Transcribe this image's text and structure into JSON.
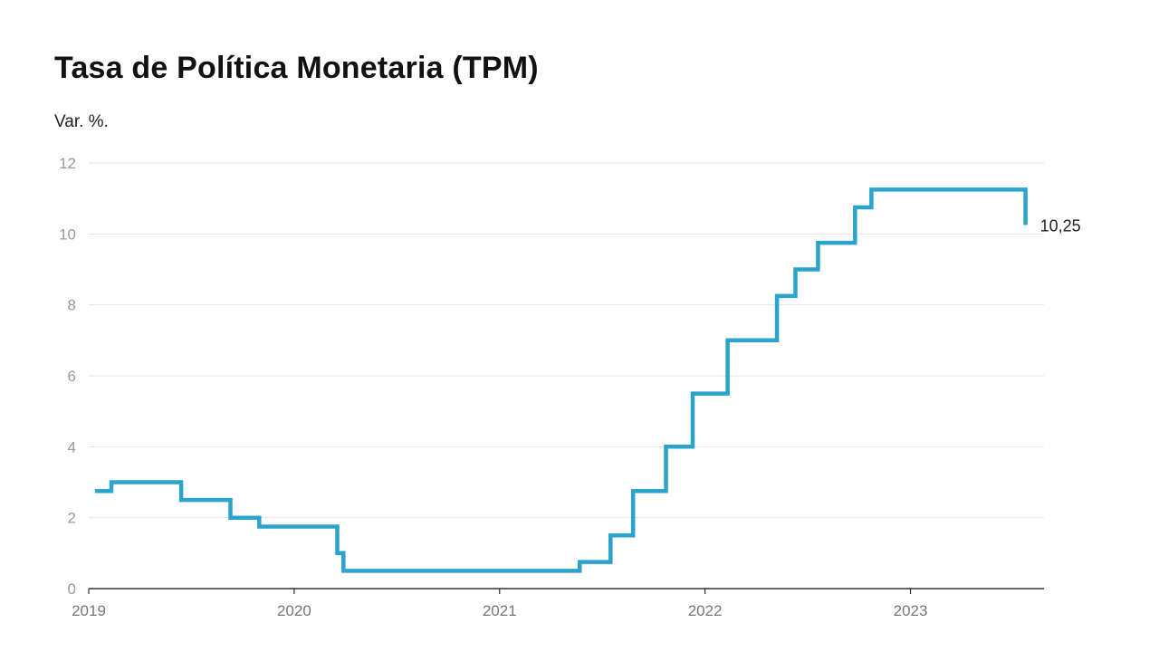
{
  "chart_data": {
    "type": "line",
    "title": "Tasa de Política Monetaria (TPM)",
    "subtitle": "Var. %.",
    "xlabel": "",
    "ylabel": "",
    "step": true,
    "line_color": "#2aa4cc",
    "grid": true,
    "xlim": [
      2019.0,
      2023.65
    ],
    "ylim": [
      0,
      12
    ],
    "yticks": [
      0,
      2,
      4,
      6,
      8,
      10,
      12
    ],
    "xticks": [
      "2019",
      "2020",
      "2021",
      "2022",
      "2023"
    ],
    "end_label": "10,25",
    "series": [
      {
        "x": [
          2019.03,
          2019.11,
          2019.45,
          2019.69,
          2019.83,
          2020.21,
          2020.24,
          2020.55,
          2021.31,
          2021.39,
          2021.54,
          2021.65,
          2021.81,
          2021.94,
          2022.11,
          2022.35,
          2022.44,
          2022.55,
          2022.73,
          2022.81,
          2023.52,
          2023.56
        ],
        "y": [
          2.75,
          3.0,
          2.5,
          2.0,
          1.75,
          1.0,
          0.5,
          0.5,
          0.5,
          0.75,
          1.5,
          2.75,
          4.0,
          5.5,
          7.0,
          8.25,
          9.0,
          9.75,
          10.75,
          11.25,
          11.25,
          10.25
        ]
      }
    ]
  }
}
